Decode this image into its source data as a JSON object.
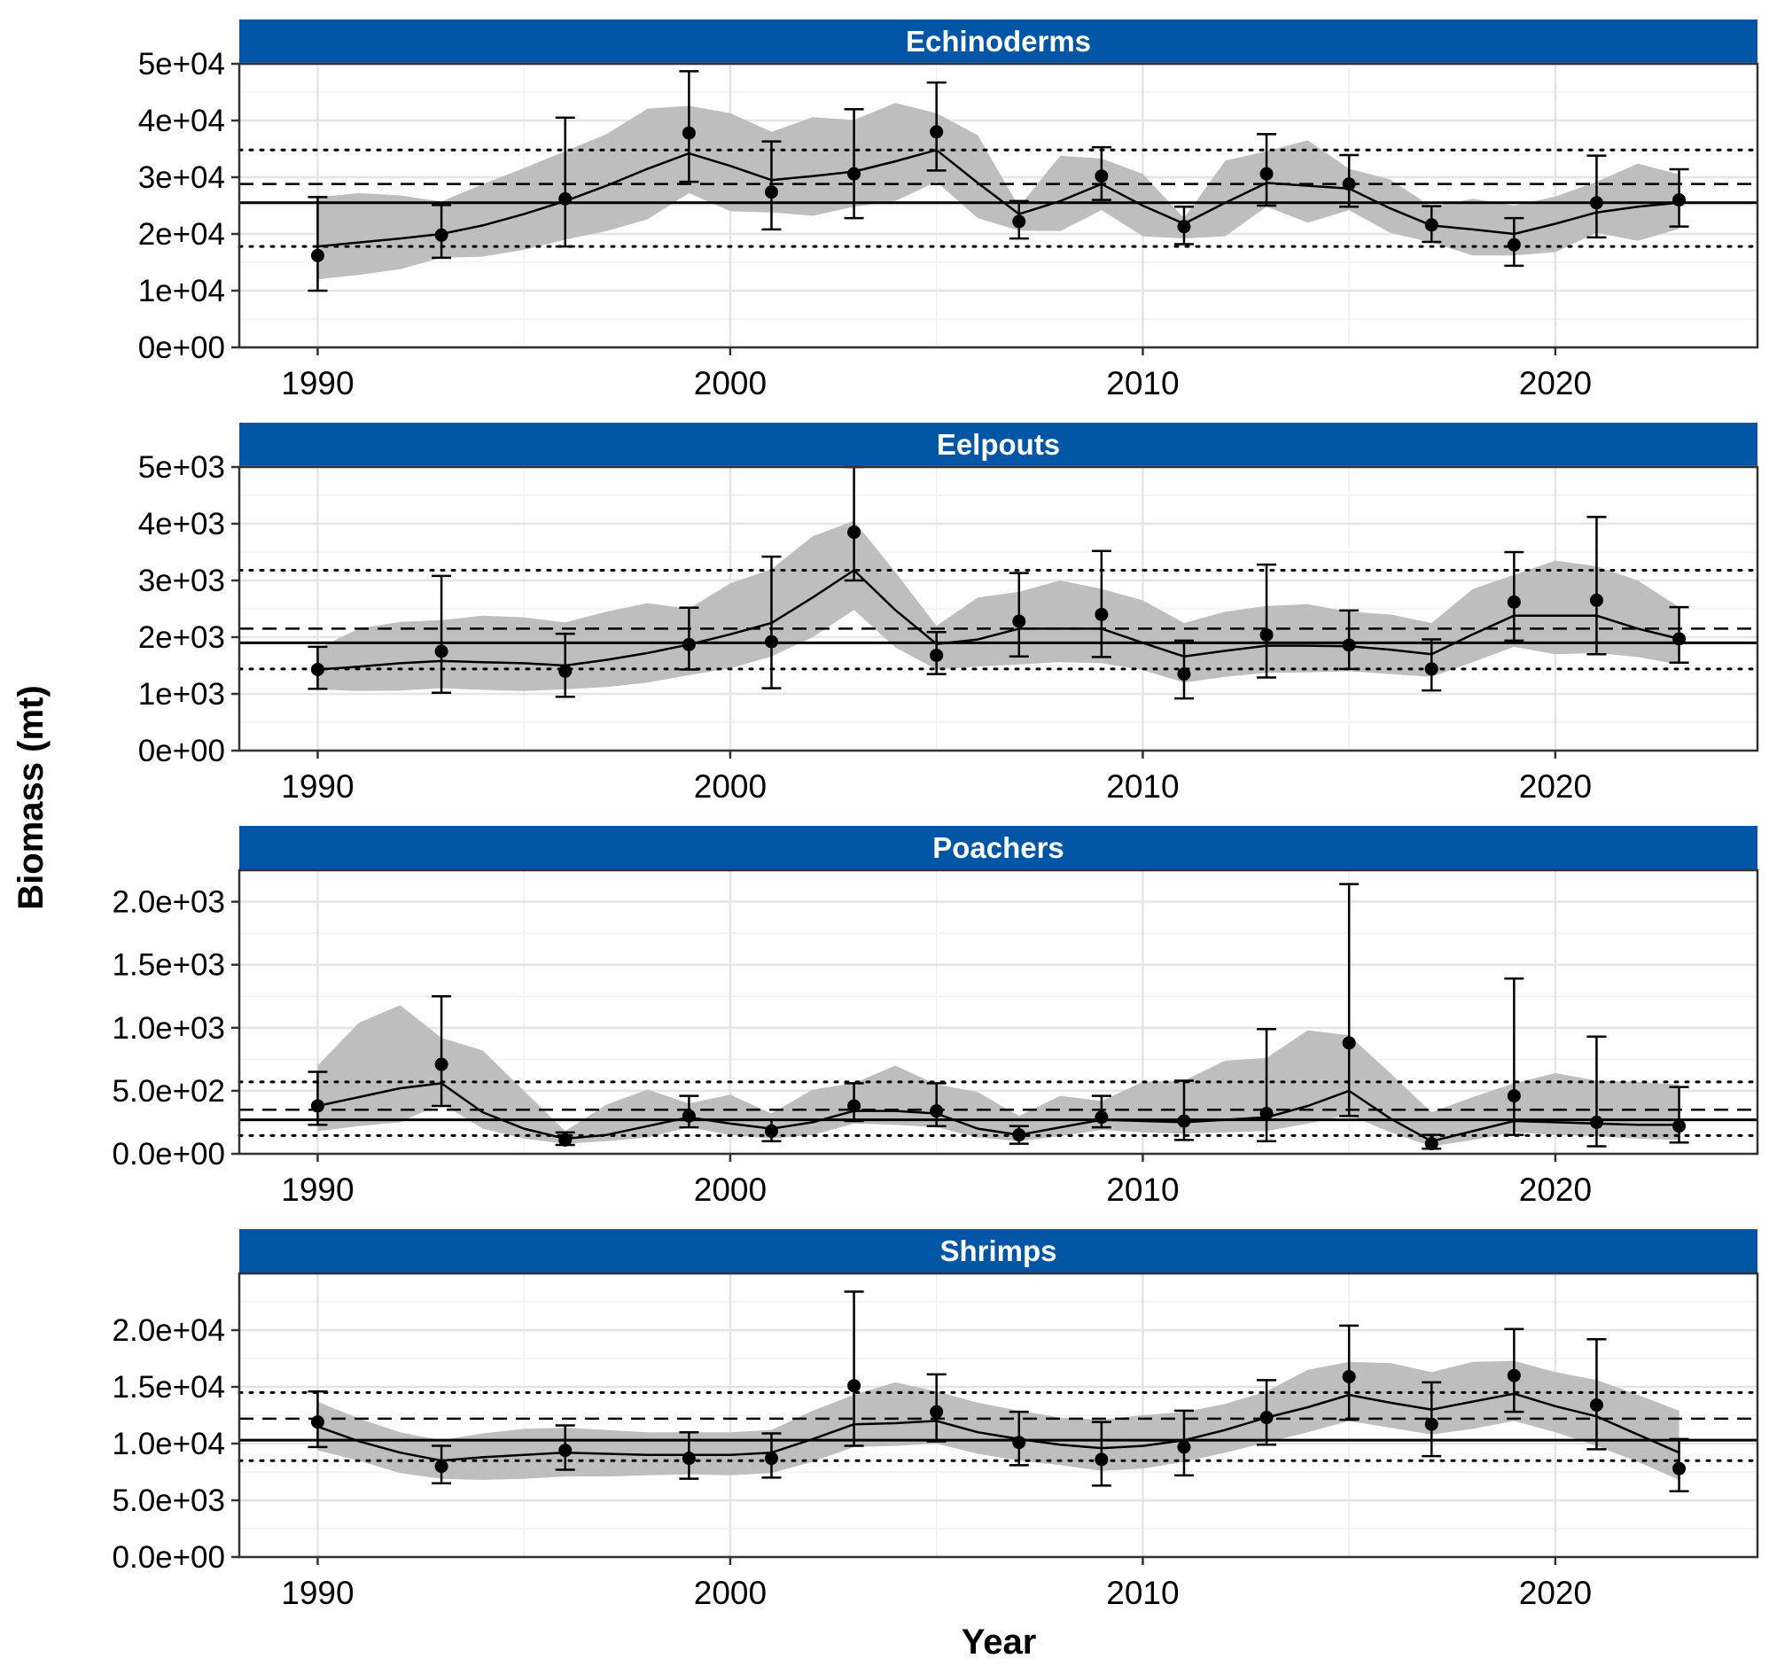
{
  "chart_data": {
    "type": "line",
    "xlabel": "Year",
    "ylabel": "Biomass (mt)",
    "strip_color": "#0055A4",
    "band_color": "#BEBEBE",
    "x_ticks": [
      1990,
      2000,
      2010,
      2020
    ],
    "xlim": [
      1988.1,
      2024.9
    ],
    "panels": [
      {
        "title": "Echinoderms",
        "ylim": [
          0,
          50000
        ],
        "y_ticks": [
          0,
          10000,
          20000,
          30000,
          40000,
          50000
        ],
        "y_tick_labels": [
          "0e+00",
          "1e+04",
          "2e+04",
          "3e+04",
          "4e+04",
          "5e+04"
        ],
        "mean": 25500,
        "dashed": 28800,
        "dotted_upper": 34800,
        "dotted_lower": 17800,
        "survey": {
          "x": [
            1990,
            1993,
            1996,
            1999,
            2001,
            2003,
            2005,
            2007,
            2009,
            2011,
            2013,
            2015,
            2017,
            2019,
            2021,
            2023
          ],
          "y": [
            16200,
            19800,
            26200,
            37800,
            27400,
            30600,
            38000,
            22200,
            30200,
            21300,
            30600,
            28800,
            21600,
            18100,
            25500,
            26000
          ],
          "lower": [
            10000,
            15800,
            17800,
            29200,
            20800,
            22800,
            31200,
            19200,
            26000,
            18200,
            25000,
            24800,
            18600,
            14400,
            19400,
            21300
          ],
          "upper": [
            26500,
            25100,
            40500,
            48700,
            36300,
            42000,
            46700,
            25800,
            35300,
            24800,
            37600,
            33900,
            24900,
            22800,
            33800,
            31400
          ]
        },
        "model": {
          "x": [
            1990,
            1991,
            1992,
            1993,
            1994,
            1995,
            1996,
            1997,
            1998,
            1999,
            2000,
            2001,
            2002,
            2003,
            2004,
            2005,
            2006,
            2007,
            2008,
            2009,
            2010,
            2011,
            2012,
            2013,
            2014,
            2015,
            2016,
            2017,
            2018,
            2019,
            2020,
            2021,
            2022,
            2023
          ],
          "y": [
            17800,
            18500,
            19200,
            20000,
            21500,
            23500,
            25800,
            28500,
            31500,
            34200,
            32000,
            29500,
            30200,
            31000,
            32800,
            34800,
            29000,
            23500,
            25800,
            28800,
            25000,
            21800,
            25500,
            29000,
            28500,
            28000,
            24500,
            21500,
            20800,
            20000,
            21800,
            23800,
            24800,
            25500
          ],
          "lower": [
            12000,
            12800,
            13800,
            15800,
            16000,
            17200,
            19000,
            20500,
            22600,
            27200,
            24000,
            23800,
            23200,
            24800,
            25800,
            29200,
            22800,
            20600,
            20500,
            24200,
            19600,
            19200,
            19600,
            24800,
            22000,
            24200,
            20200,
            18500,
            16200,
            16200,
            16800,
            20200,
            18800,
            20900
          ],
          "upper": [
            26500,
            27200,
            26800,
            25700,
            28800,
            31600,
            34600,
            37600,
            42100,
            42600,
            41300,
            38000,
            40600,
            40100,
            43100,
            41300,
            37400,
            24800,
            33800,
            33300,
            30600,
            22800,
            32900,
            34600,
            36500,
            31500,
            29600,
            24800,
            26200,
            25000,
            26600,
            29200,
            32400,
            30500
          ]
        }
      },
      {
        "title": "Eelpouts",
        "ylim": [
          0,
          5000
        ],
        "y_ticks": [
          0,
          1000,
          2000,
          3000,
          4000,
          5000
        ],
        "y_tick_labels": [
          "0e+00",
          "1e+03",
          "2e+03",
          "3e+03",
          "4e+03",
          "5e+03"
        ],
        "mean": 1900,
        "dashed": 2150,
        "dotted_upper": 3180,
        "dotted_lower": 1440,
        "survey": {
          "x": [
            1990,
            1993,
            1996,
            1999,
            2001,
            2003,
            2005,
            2007,
            2009,
            2011,
            2013,
            2015,
            2017,
            2019,
            2021,
            2023
          ],
          "y": [
            1430,
            1750,
            1400,
            1870,
            1920,
            3850,
            1680,
            2280,
            2400,
            1350,
            2040,
            1860,
            1440,
            2620,
            2650,
            1970
          ],
          "lower": [
            1090,
            1020,
            950,
            1430,
            1100,
            3000,
            1350,
            1660,
            1650,
            920,
            1290,
            1440,
            1060,
            1940,
            1700,
            1550
          ],
          "upper": [
            1830,
            3080,
            2060,
            2520,
            3420,
            5000,
            2090,
            3130,
            3520,
            1940,
            3280,
            2470,
            1960,
            3500,
            4120,
            2530
          ]
        },
        "model": {
          "x": [
            1990,
            1991,
            1992,
            1993,
            1994,
            1995,
            1996,
            1997,
            1998,
            1999,
            2000,
            2001,
            2002,
            2003,
            2004,
            2005,
            2006,
            2007,
            2008,
            2009,
            2010,
            2011,
            2012,
            2013,
            2014,
            2015,
            2016,
            2017,
            2018,
            2019,
            2020,
            2021,
            2022,
            2023
          ],
          "y": [
            1430,
            1480,
            1540,
            1580,
            1560,
            1540,
            1500,
            1600,
            1720,
            1870,
            2050,
            2250,
            2700,
            3180,
            2480,
            1880,
            1960,
            2150,
            2150,
            2150,
            1900,
            1660,
            1760,
            1850,
            1850,
            1840,
            1780,
            1700,
            2050,
            2380,
            2380,
            2380,
            2150,
            1970
          ],
          "lower": [
            1080,
            1050,
            1060,
            1100,
            1070,
            1050,
            1080,
            1120,
            1200,
            1330,
            1450,
            1660,
            2000,
            2480,
            1820,
            1430,
            1480,
            1520,
            1560,
            1540,
            1420,
            1200,
            1300,
            1370,
            1380,
            1400,
            1350,
            1300,
            1560,
            1830,
            1700,
            1720,
            1650,
            1520
          ],
          "upper": [
            1800,
            2150,
            2270,
            2300,
            2380,
            2350,
            2260,
            2450,
            2600,
            2500,
            2950,
            3200,
            3780,
            4050,
            3150,
            2200,
            2700,
            2800,
            3000,
            2850,
            2650,
            2250,
            2450,
            2550,
            2580,
            2450,
            2400,
            2250,
            2850,
            3100,
            3350,
            3250,
            3000,
            2530
          ]
        }
      },
      {
        "title": "Poachers",
        "ylim": [
          0,
          2250
        ],
        "y_ticks": [
          0,
          500,
          1000,
          1500,
          2000
        ],
        "y_tick_labels": [
          "0.0e+00",
          "5.0e+02",
          "1.0e+03",
          "1.5e+03",
          "2.0e+03"
        ],
        "mean": 270,
        "dashed": 350,
        "dotted_upper": 570,
        "dotted_lower": 145,
        "survey": {
          "x": [
            1990,
            1993,
            1996,
            1999,
            2001,
            2003,
            2005,
            2007,
            2009,
            2011,
            2013,
            2015,
            2017,
            2019,
            2021,
            2023
          ],
          "y": [
            380,
            710,
            110,
            300,
            180,
            380,
            340,
            150,
            290,
            260,
            320,
            880,
            80,
            460,
            250,
            220
          ],
          "lower": [
            230,
            380,
            70,
            210,
            100,
            260,
            220,
            80,
            210,
            110,
            100,
            300,
            40,
            150,
            60,
            90
          ],
          "upper": [
            650,
            1250,
            170,
            460,
            270,
            560,
            560,
            220,
            460,
            580,
            990,
            2140,
            150,
            1390,
            930,
            530
          ]
        },
        "model": {
          "x": [
            1990,
            1991,
            1992,
            1993,
            1994,
            1995,
            1996,
            1997,
            1998,
            1999,
            2000,
            2001,
            2002,
            2003,
            2004,
            2005,
            2006,
            2007,
            2008,
            2009,
            2010,
            2011,
            2012,
            2013,
            2014,
            2015,
            2016,
            2017,
            2018,
            2019,
            2020,
            2021,
            2022,
            2023
          ],
          "y": [
            380,
            450,
            520,
            560,
            330,
            200,
            120,
            150,
            220,
            290,
            240,
            200,
            250,
            340,
            340,
            320,
            200,
            150,
            210,
            270,
            260,
            250,
            270,
            290,
            380,
            500,
            280,
            100,
            180,
            260,
            250,
            240,
            230,
            230
          ],
          "lower": [
            180,
            220,
            250,
            400,
            200,
            120,
            80,
            100,
            130,
            210,
            150,
            120,
            150,
            240,
            230,
            210,
            130,
            100,
            140,
            190,
            170,
            160,
            170,
            180,
            240,
            310,
            170,
            60,
            110,
            170,
            150,
            140,
            120,
            110
          ],
          "upper": [
            700,
            1040,
            1180,
            920,
            820,
            500,
            180,
            390,
            510,
            400,
            470,
            320,
            510,
            560,
            700,
            550,
            490,
            300,
            460,
            420,
            570,
            580,
            740,
            760,
            980,
            940,
            640,
            330,
            450,
            560,
            640,
            580,
            570,
            550
          ]
        }
      },
      {
        "title": "Shrimps",
        "ylim": [
          0,
          25000
        ],
        "y_ticks": [
          0,
          5000,
          10000,
          15000,
          20000
        ],
        "y_tick_labels": [
          "0.0e+00",
          "5.0e+03",
          "1.0e+04",
          "1.5e+04",
          "2.0e+04"
        ],
        "mean": 10300,
        "dashed": 12200,
        "dotted_upper": 14500,
        "dotted_lower": 8500,
        "survey": {
          "x": [
            1990,
            1993,
            1996,
            1999,
            2001,
            2003,
            2005,
            2007,
            2009,
            2011,
            2013,
            2015,
            2017,
            2019,
            2021,
            2023
          ],
          "y": [
            11900,
            8000,
            9400,
            8700,
            8700,
            15100,
            12800,
            10100,
            8600,
            9700,
            12300,
            15900,
            11700,
            16000,
            13400,
            7800
          ],
          "lower": [
            9700,
            6500,
            7700,
            6900,
            7000,
            9800,
            10200,
            8100,
            6300,
            7200,
            9900,
            12100,
            8900,
            12800,
            9500,
            5800
          ],
          "upper": [
            14600,
            9800,
            11600,
            11000,
            10900,
            23400,
            16100,
            12800,
            11900,
            12900,
            15600,
            20400,
            15400,
            20100,
            19200,
            10400
          ]
        },
        "model": {
          "x": [
            1990,
            1991,
            1992,
            1993,
            1994,
            1995,
            1996,
            1997,
            1998,
            1999,
            2000,
            2001,
            2002,
            2003,
            2004,
            2005,
            2006,
            2007,
            2008,
            2009,
            2010,
            2011,
            2012,
            2013,
            2014,
            2015,
            2016,
            2017,
            2018,
            2019,
            2020,
            2021,
            2022,
            2023
          ],
          "y": [
            11500,
            10200,
            9200,
            8500,
            8800,
            9000,
            9200,
            9100,
            9000,
            9000,
            9000,
            9200,
            10400,
            11700,
            11800,
            12000,
            11000,
            10400,
            9900,
            9600,
            9800,
            10300,
            11200,
            12300,
            13200,
            14300,
            13600,
            13000,
            13700,
            14400,
            13300,
            12400,
            10800,
            9200
          ],
          "lower": [
            9400,
            8500,
            7400,
            6900,
            6800,
            6900,
            7100,
            7100,
            7200,
            7300,
            7200,
            7400,
            8400,
            9700,
            9800,
            10000,
            9100,
            8500,
            8100,
            7600,
            7800,
            8400,
            9200,
            10100,
            11000,
            12000,
            11400,
            10800,
            11300,
            12000,
            11000,
            9800,
            8400,
            6800
          ],
          "upper": [
            13700,
            12200,
            11000,
            10300,
            10900,
            11300,
            11400,
            11200,
            11000,
            11000,
            11000,
            11200,
            12900,
            14300,
            15400,
            14600,
            13600,
            12900,
            12300,
            12100,
            12500,
            12800,
            13500,
            14600,
            16500,
            17200,
            17100,
            16300,
            17200,
            17300,
            16300,
            15600,
            14300,
            12900
          ]
        }
      }
    ]
  }
}
